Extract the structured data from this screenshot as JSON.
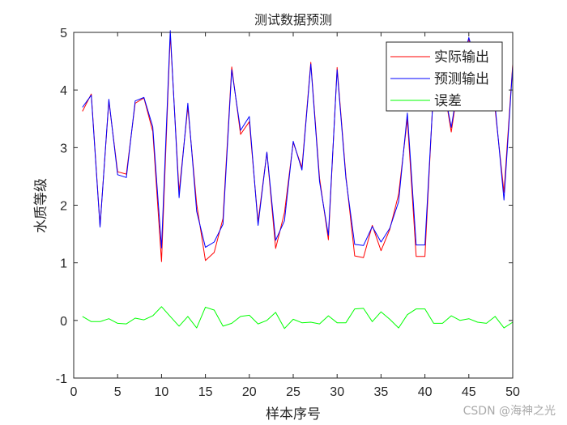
{
  "title": "测试数据预测",
  "xlabel": "样本序号",
  "ylabel": "水质等级",
  "watermark": "CSDN @海神之光",
  "legend": {
    "items": [
      {
        "label": "实际输出",
        "color": "#ff0000"
      },
      {
        "label": "预测输出",
        "color": "#0000ff"
      },
      {
        "label": "误差",
        "color": "#00ff00"
      }
    ]
  },
  "colors": {
    "actual": "#ff0000",
    "predicted": "#0000ff",
    "error": "#00ff00",
    "axis": "#262626"
  },
  "chart_data": {
    "type": "line",
    "title": "测试数据预测",
    "xlabel": "样本序号",
    "ylabel": "水质等级",
    "xlim": [
      0,
      50
    ],
    "ylim": [
      -1,
      5
    ],
    "xticks": [
      0,
      5,
      10,
      15,
      20,
      25,
      30,
      35,
      40,
      45,
      50
    ],
    "yticks": [
      -1,
      0,
      1,
      2,
      3,
      4,
      5
    ],
    "grid": false,
    "legend_position": "upper right",
    "x": [
      1,
      2,
      3,
      4,
      5,
      6,
      7,
      8,
      9,
      10,
      11,
      12,
      13,
      14,
      15,
      16,
      17,
      18,
      19,
      20,
      21,
      22,
      23,
      24,
      25,
      26,
      27,
      28,
      29,
      30,
      31,
      32,
      33,
      34,
      35,
      36,
      37,
      38,
      39,
      40,
      41,
      42,
      43,
      44,
      45,
      46,
      47,
      48,
      49,
      50
    ],
    "series": [
      {
        "name": "实际输出",
        "color": "#ff0000",
        "values": [
          3.63,
          3.93,
          1.64,
          3.81,
          2.58,
          2.54,
          3.77,
          3.86,
          3.28,
          1.02,
          4.96,
          2.23,
          3.7,
          2.02,
          1.04,
          1.18,
          1.77,
          4.4,
          3.23,
          3.45,
          1.71,
          2.92,
          1.25,
          1.87,
          3.09,
          2.65,
          4.48,
          2.47,
          1.4,
          4.39,
          2.51,
          1.12,
          1.09,
          1.65,
          1.21,
          1.58,
          2.19,
          3.5,
          1.11,
          1.11,
          4.1,
          4.2,
          3.27,
          4.3,
          4.88,
          4.4,
          4.1,
          3.66,
          2.22,
          4.45
        ]
      },
      {
        "name": "预测输出",
        "color": "#0000ff",
        "values": [
          3.7,
          3.91,
          1.62,
          3.84,
          2.53,
          2.48,
          3.81,
          3.87,
          3.36,
          1.26,
          5.03,
          2.13,
          3.77,
          1.89,
          1.27,
          1.36,
          1.67,
          4.35,
          3.3,
          3.54,
          1.65,
          2.92,
          1.39,
          1.73,
          3.11,
          2.61,
          4.45,
          2.41,
          1.48,
          4.35,
          2.47,
          1.32,
          1.3,
          1.63,
          1.36,
          1.6,
          2.06,
          3.6,
          1.31,
          1.31,
          4.05,
          4.15,
          3.35,
          4.3,
          4.91,
          4.37,
          4.05,
          3.73,
          2.09,
          4.42
        ]
      },
      {
        "name": "误差",
        "color": "#00ff00",
        "values": [
          0.07,
          -0.02,
          -0.02,
          0.03,
          -0.05,
          -0.06,
          0.04,
          0.01,
          0.08,
          0.24,
          0.07,
          -0.1,
          0.07,
          -0.13,
          0.23,
          0.18,
          -0.1,
          -0.05,
          0.07,
          0.09,
          -0.06,
          0.0,
          0.14,
          -0.14,
          0.02,
          -0.04,
          -0.03,
          -0.06,
          0.08,
          -0.04,
          -0.04,
          0.2,
          0.21,
          -0.02,
          0.15,
          0.02,
          -0.13,
          0.1,
          0.2,
          0.2,
          -0.05,
          -0.05,
          0.08,
          0.0,
          0.03,
          -0.03,
          -0.05,
          0.07,
          -0.13,
          -0.03
        ]
      }
    ]
  }
}
